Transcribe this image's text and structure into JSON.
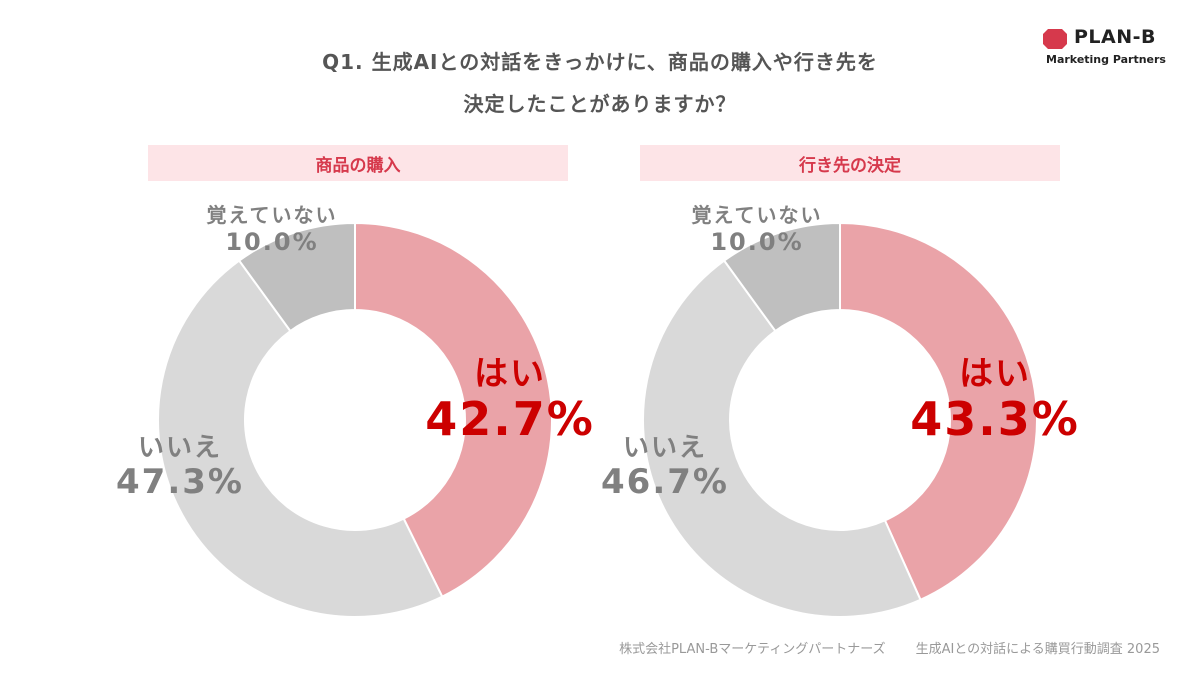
{
  "brand": {
    "name": "PLAN-B",
    "sub": "Marketing Partners",
    "color": "#d6394c"
  },
  "title": {
    "line1": "Q1. 生成AIとの対話をきっかけに、商品の購入や行き先を",
    "line2": "決定したことがありますか？"
  },
  "colors": {
    "yes": "#eaa3a8",
    "no": "#d9d9d9",
    "dontremember": "#bfbfbf",
    "yes_text": "#cc0000",
    "other_text": "#808080",
    "header_bg": "#fde4e7",
    "header_text": "#d6394c"
  },
  "chart_data": [
    {
      "type": "pie",
      "title": "商品の購入",
      "slices": [
        {
          "label": "はい",
          "value": 42.7,
          "display": "42.7%"
        },
        {
          "label": "いいえ",
          "value": 47.3,
          "display": "47.3%"
        },
        {
          "label": "覚えていない",
          "value": 10.0,
          "display": "10.0%"
        }
      ]
    },
    {
      "type": "pie",
      "title": "行き先の決定",
      "slices": [
        {
          "label": "はい",
          "value": 43.3,
          "display": "43.3%"
        },
        {
          "label": "いいえ",
          "value": 46.7,
          "display": "46.7%"
        },
        {
          "label": "覚えていない",
          "value": 10.0,
          "display": "10.0%"
        }
      ]
    }
  ],
  "footer": {
    "company": "株式会社PLAN-Bマーケティングパートナーズ",
    "survey": "生成AIとの対話による購買行動調査 2025"
  }
}
